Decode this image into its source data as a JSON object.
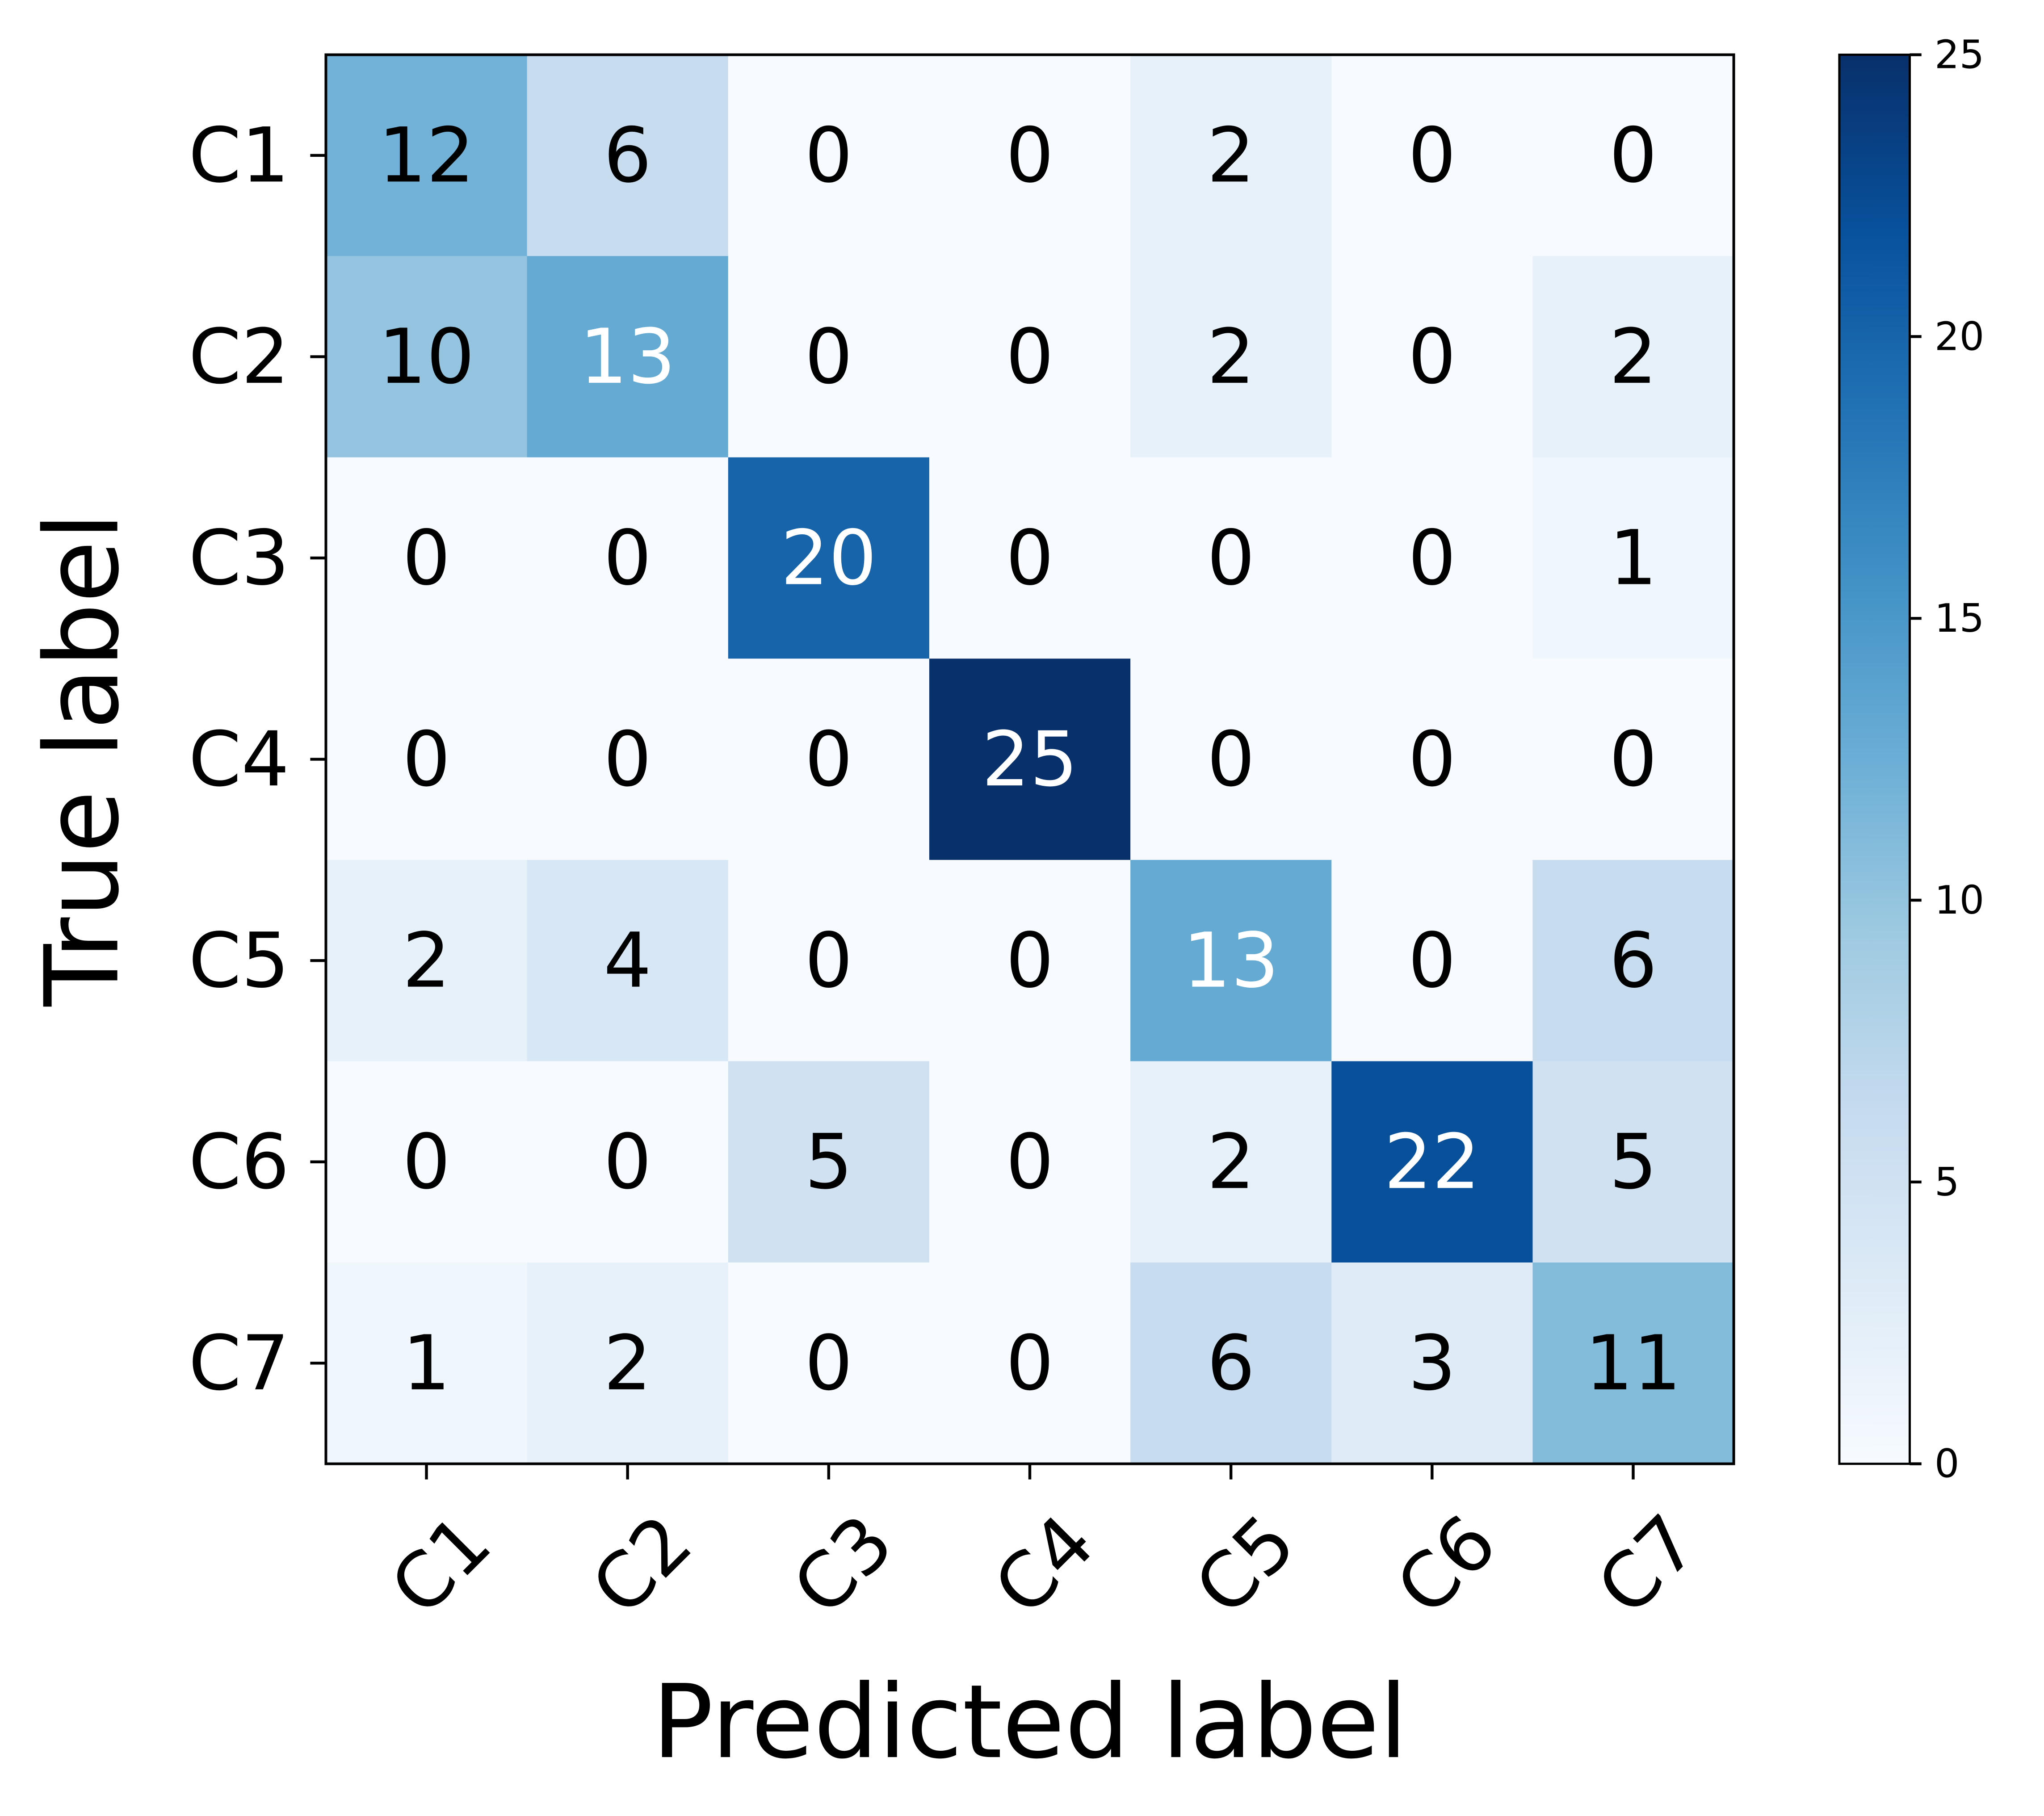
{
  "chart_data": {
    "type": "heatmap",
    "title": "",
    "xlabel": "Predicted label",
    "ylabel": "True label",
    "x_categories": [
      "C1",
      "C2",
      "C3",
      "C4",
      "C5",
      "C6",
      "C7"
    ],
    "y_categories": [
      "C1",
      "C2",
      "C3",
      "C4",
      "C5",
      "C6",
      "C7"
    ],
    "values": [
      [
        12,
        6,
        0,
        0,
        2,
        0,
        0
      ],
      [
        10,
        13,
        0,
        0,
        2,
        0,
        2
      ],
      [
        0,
        0,
        20,
        0,
        0,
        0,
        1
      ],
      [
        0,
        0,
        0,
        25,
        0,
        0,
        0
      ],
      [
        2,
        4,
        0,
        0,
        13,
        0,
        6
      ],
      [
        0,
        0,
        5,
        0,
        2,
        22,
        5
      ],
      [
        1,
        2,
        0,
        0,
        6,
        3,
        11
      ]
    ],
    "colorbar": {
      "min": 0,
      "max": 25,
      "ticks": [
        0,
        5,
        10,
        15,
        20,
        25
      ],
      "colormap": "Blues",
      "low_color": "#f7fbff",
      "high_color": "#08306b"
    },
    "x_tick_rotation": "45 degrees",
    "grid": false,
    "legend": "colorbar right"
  }
}
